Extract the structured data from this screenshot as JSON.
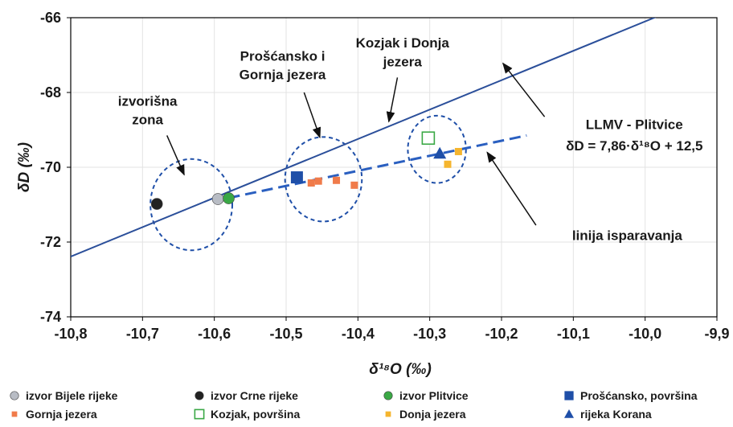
{
  "chart_data": {
    "type": "scatter",
    "xlabel": "δ¹⁸O (‰)",
    "ylabel": "δD (‰)",
    "xlim": [
      -10.8,
      -9.9
    ],
    "ylim": [
      -74,
      -66
    ],
    "x_ticks": [
      "-10,8",
      "-10,7",
      "-10,6",
      "-10,5",
      "-10,4",
      "-10,3",
      "-10,2",
      "-10,1",
      "-10,0",
      "-9,9"
    ],
    "y_ticks": [
      "-74",
      "-72",
      "-70",
      "-68",
      "-66"
    ],
    "x_tick_values": [
      -10.8,
      -10.7,
      -10.6,
      -10.5,
      -10.4,
      -10.3,
      -10.2,
      -10.1,
      -10.0,
      -9.9
    ],
    "y_tick_values": [
      -74,
      -72,
      -70,
      -68,
      -66
    ],
    "grid": true,
    "legend_position": "bottom",
    "series": [
      {
        "name": "izvor Bijele rijeke",
        "marker": "circle",
        "color": "#b8bcc4",
        "points": [
          [
            -10.595,
            -70.85
          ]
        ]
      },
      {
        "name": "izvor Crne rijeke",
        "marker": "circle",
        "color": "#222222",
        "points": [
          [
            -10.68,
            -70.98
          ]
        ]
      },
      {
        "name": "izvor Plitvice",
        "marker": "circle",
        "color": "#3aa845",
        "points": [
          [
            -10.58,
            -70.83
          ]
        ]
      },
      {
        "name": "Prošćansko, površina",
        "marker": "square",
        "color": "#1f4fa8",
        "points": [
          [
            -10.485,
            -70.27
          ]
        ]
      },
      {
        "name": "Gornja jezera",
        "marker": "square-small",
        "color": "#f07b4a",
        "points": [
          [
            -10.465,
            -70.42
          ],
          [
            -10.455,
            -70.37
          ],
          [
            -10.43,
            -70.35
          ],
          [
            -10.405,
            -70.48
          ]
        ]
      },
      {
        "name": "Kozjak, površina",
        "marker": "square-open",
        "color": "#3aa845",
        "points": [
          [
            -10.302,
            -69.22
          ]
        ]
      },
      {
        "name": "Donja jezera",
        "marker": "square-small",
        "color": "#f5b52e",
        "points": [
          [
            -10.275,
            -69.92
          ],
          [
            -10.26,
            -69.58
          ]
        ]
      },
      {
        "name": "rijeka Korana",
        "marker": "triangle",
        "color": "#1f4fa8",
        "points": [
          [
            -10.286,
            -69.63
          ]
        ]
      }
    ],
    "lines": [
      {
        "name": "LLMV - Plitvice",
        "style": "solid",
        "color": "#2b4f9a",
        "x": [
          -10.8,
          -9.972
        ],
        "y": [
          -72.388,
          -65.88
        ]
      },
      {
        "name": "linija isparavanja",
        "style": "dashed",
        "color": "#2a5fc0",
        "x": [
          -10.58,
          -10.165
        ],
        "y": [
          -70.82,
          -69.15
        ]
      }
    ],
    "circles": [
      {
        "cx": -10.632,
        "cy": -71.0,
        "rx": 0.057,
        "ry": 1.22
      },
      {
        "cx": -10.448,
        "cy": -70.32,
        "rx": 0.0535,
        "ry": 1.13
      },
      {
        "cx": -10.29,
        "cy": -69.52,
        "rx": 0.0405,
        "ry": 0.9
      }
    ],
    "annotations": [
      {
        "lines": [
          "izvorišna",
          "zona"
        ],
        "text_x": -10.693,
        "text_y": [
          -68.35,
          -68.85
        ],
        "arrow_from": [
          -10.666,
          -69.15
        ],
        "arrow_to": [
          -10.642,
          -70.2
        ]
      },
      {
        "lines": [
          "Prošćansko i",
          "Gornja jezera"
        ],
        "text_x": -10.505,
        "text_y": [
          -67.15,
          -67.65
        ],
        "arrow_from": [
          -10.475,
          -68.0
        ],
        "arrow_to": [
          -10.453,
          -69.2
        ]
      },
      {
        "lines": [
          "Kozjak i Donja",
          "jezera"
        ],
        "text_x": -10.338,
        "text_y": [
          -66.8,
          -67.3
        ],
        "arrow_from": [
          -10.345,
          -67.6
        ],
        "arrow_to": [
          -10.357,
          -68.78
        ]
      },
      {
        "lines": [
          "LLMV - Plitvice"
        ],
        "text_x": -10.015,
        "text_y": [
          -68.98
        ],
        "arrow_from": [
          -10.14,
          -68.65
        ],
        "arrow_to": [
          -10.198,
          -67.22
        ]
      },
      {
        "lines": [
          "δD = 7,86·δ¹⁸O + 12,5"
        ],
        "text_x": -10.015,
        "text_y": [
          -69.55
        ],
        "arrow_from": null,
        "arrow_to": null
      },
      {
        "lines": [
          "linija isparavanja"
        ],
        "text_x": -10.025,
        "text_y": [
          -71.95
        ],
        "arrow_from": [
          -10.152,
          -71.55
        ],
        "arrow_to": [
          -10.22,
          -69.6
        ]
      }
    ]
  }
}
